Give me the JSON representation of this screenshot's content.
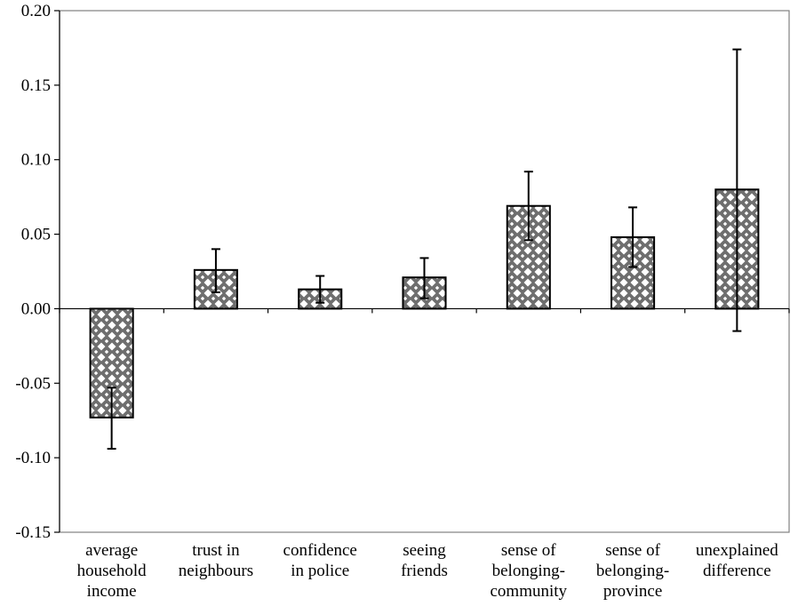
{
  "chart_data": {
    "type": "bar",
    "title": "",
    "xlabel": "",
    "ylabel": "",
    "ylim": [
      -0.15,
      0.2
    ],
    "yticks": [
      "0.20",
      "0.15",
      "0.10",
      "0.05",
      "0.00",
      "-0.05",
      "-0.10",
      "-0.15"
    ],
    "ytick_values": [
      0.2,
      0.15,
      0.1,
      0.05,
      0.0,
      -0.05,
      -0.1,
      -0.15
    ],
    "grid": false,
    "legend": "none",
    "bar_pattern": "checkered gray with white diamonds",
    "categories": [
      [
        "average",
        "household",
        "income"
      ],
      [
        "trust in",
        "neighbours"
      ],
      [
        "confidence",
        "in police"
      ],
      [
        "seeing",
        "friends"
      ],
      [
        "sense of",
        "belonging-",
        "community"
      ],
      [
        "sense of",
        "belonging-",
        "province"
      ],
      [
        "unexplained",
        "difference"
      ]
    ],
    "values": [
      -0.073,
      0.026,
      0.013,
      0.021,
      0.069,
      0.048,
      0.08
    ],
    "error_low": [
      -0.094,
      0.011,
      0.004,
      0.007,
      0.046,
      0.028,
      -0.015
    ],
    "error_high": [
      -0.053,
      0.04,
      0.022,
      0.034,
      0.092,
      0.068,
      0.174
    ]
  }
}
